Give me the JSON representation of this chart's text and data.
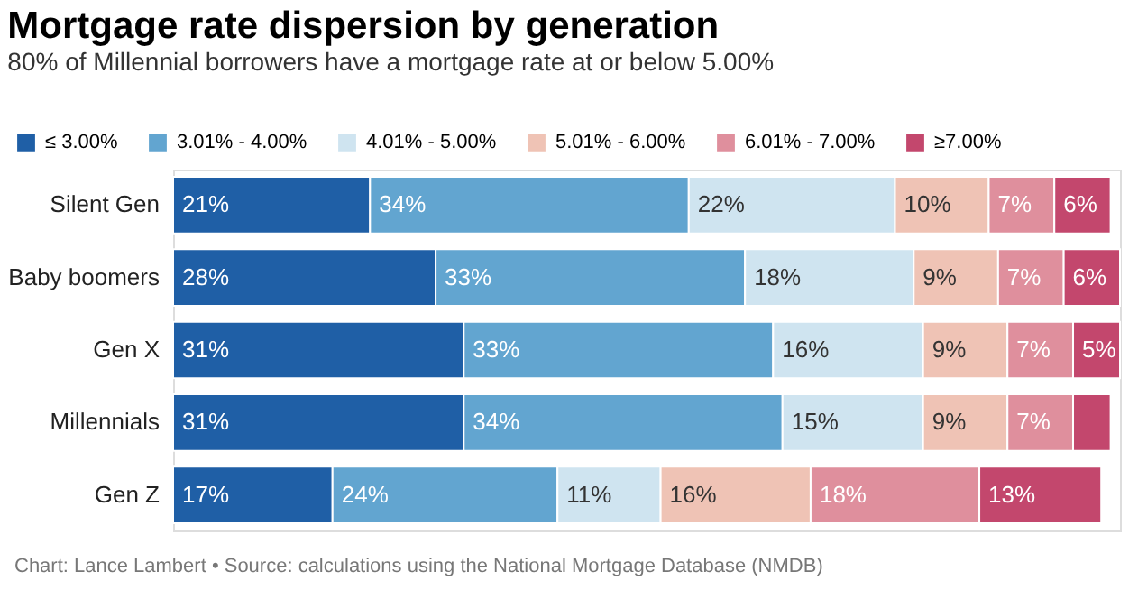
{
  "chart_data": {
    "type": "bar",
    "orientation": "horizontal",
    "stacked": true,
    "title": "Mortgage rate dispersion by generation",
    "subtitle": "80% of Millennial borrowers have a mortgage rate at or below 5.00%",
    "categories": [
      "Silent Gen",
      "Baby boomers",
      "Gen X",
      "Millennials",
      "Gen Z"
    ],
    "series": [
      {
        "name": "≤ 3.00%",
        "color": "#1f5fa6",
        "values": [
          21,
          28,
          31,
          31,
          17
        ],
        "value_labels": [
          "21%",
          "28%",
          "31%",
          "31%",
          "17%"
        ]
      },
      {
        "name": "3.01% - 4.00%",
        "color": "#62a5d0",
        "values": [
          34,
          33,
          33,
          34,
          24
        ],
        "value_labels": [
          "34%",
          "33%",
          "33%",
          "34%",
          "24%"
        ]
      },
      {
        "name": "4.01% - 5.00%",
        "color": "#cfe4f0",
        "values": [
          22,
          18,
          16,
          15,
          11
        ],
        "value_labels": [
          "22%",
          "18%",
          "16%",
          "15%",
          "11%"
        ]
      },
      {
        "name": "5.01% - 6.00%",
        "color": "#efc3b5",
        "values": [
          10,
          9,
          9,
          9,
          16
        ],
        "value_labels": [
          "10%",
          "9%",
          "9%",
          "9%",
          "16%"
        ]
      },
      {
        "name": "6.01% - 7.00%",
        "color": "#df8f9d",
        "values": [
          7,
          7,
          7,
          7,
          18
        ],
        "value_labels": [
          "7%",
          "7%",
          "7%",
          "7%",
          "18%"
        ]
      },
      {
        "name": "≥7.00%",
        "color": "#c3476d",
        "values": [
          6,
          6,
          5,
          4,
          13
        ],
        "value_labels": [
          "6%",
          "6%",
          "5%",
          null,
          "13%"
        ]
      }
    ],
    "legend": "top left",
    "grid": false,
    "annotations": [
      "Chart: Lance Lambert • Source: calculations using the National Mortgage Database (NMDB)"
    ]
  }
}
